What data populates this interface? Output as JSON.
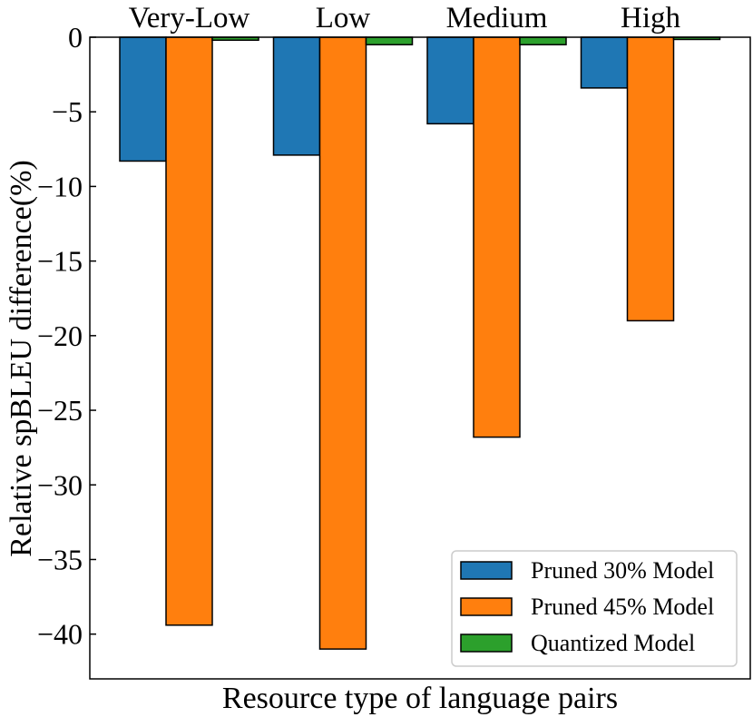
{
  "chart_data": {
    "type": "bar",
    "title": "",
    "xlabel": "Resource type of language pairs",
    "ylabel": "Relative spBLEU difference(%)",
    "categories": [
      "Very-Low",
      "Low",
      "Medium",
      "High"
    ],
    "series": [
      {
        "name": "Pruned 30% Model",
        "color": "#1f77b4",
        "values": [
          -8.3,
          -7.9,
          -5.8,
          -3.4
        ]
      },
      {
        "name": "Pruned 45% Model",
        "color": "#ff7f0e",
        "values": [
          -39.4,
          -41.0,
          -26.8,
          -19.0
        ]
      },
      {
        "name": "Quantized Model",
        "color": "#2ca02c",
        "values": [
          -0.2,
          -0.5,
          -0.5,
          -0.15
        ]
      }
    ],
    "ylim": [
      -43,
      0
    ],
    "yticks": [
      0,
      -5,
      -10,
      -15,
      -20,
      -25,
      -30,
      -35,
      -40
    ],
    "ytick_labels": [
      "0",
      "−5",
      "−10",
      "−15",
      "−20",
      "−25",
      "−30",
      "−35",
      "−40"
    ],
    "category_labels_position": "top",
    "legend_position": "bottom-right",
    "grid": false
  }
}
